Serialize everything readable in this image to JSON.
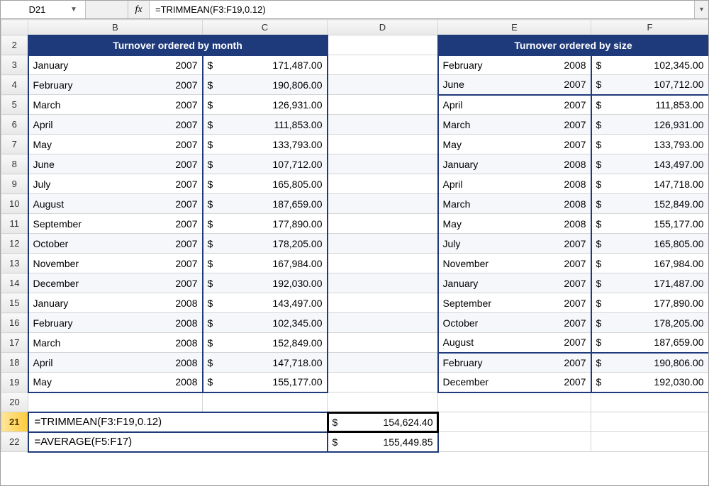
{
  "colors": {
    "header_bg": "#1e3a7b",
    "header_fg": "#ffffff",
    "alt_row_bg": "#f5f7fb",
    "grid_border": "#d4d4d4",
    "box_border": "#1e3a7b",
    "col_active_bg": "#ffcb3d",
    "row_header_bg": "#e6e6e6"
  },
  "nameBox": "D21",
  "formula": "=TRIMMEAN(F3:F19,0.12)",
  "fxLabel": "fx",
  "columns": [
    "B",
    "C",
    "D",
    "E",
    "F"
  ],
  "activeColumn": "D",
  "activeRow": 21,
  "rowStart": 2,
  "rowEnd": 22,
  "headers": {
    "left": "Turnover ordered by month",
    "right": "Turnover ordered by size"
  },
  "currency": "$",
  "leftTable": [
    {
      "month": "January",
      "year": "2007",
      "amount": "171,487.00"
    },
    {
      "month": "February",
      "year": "2007",
      "amount": "190,806.00"
    },
    {
      "month": "March",
      "year": "2007",
      "amount": "126,931.00"
    },
    {
      "month": "April",
      "year": "2007",
      "amount": "111,853.00"
    },
    {
      "month": "May",
      "year": "2007",
      "amount": "133,793.00"
    },
    {
      "month": "June",
      "year": "2007",
      "amount": "107,712.00"
    },
    {
      "month": "July",
      "year": "2007",
      "amount": "165,805.00"
    },
    {
      "month": "August",
      "year": "2007",
      "amount": "187,659.00"
    },
    {
      "month": "September",
      "year": "2007",
      "amount": "177,890.00"
    },
    {
      "month": "October",
      "year": "2007",
      "amount": "178,205.00"
    },
    {
      "month": "November",
      "year": "2007",
      "amount": "167,984.00"
    },
    {
      "month": "December",
      "year": "2007",
      "amount": "192,030.00"
    },
    {
      "month": "January",
      "year": "2008",
      "amount": "143,497.00"
    },
    {
      "month": "February",
      "year": "2008",
      "amount": "102,345.00"
    },
    {
      "month": "March",
      "year": "2008",
      "amount": "152,849.00"
    },
    {
      "month": "April",
      "year": "2008",
      "amount": "147,718.00"
    },
    {
      "month": "May",
      "year": "2008",
      "amount": "155,177.00"
    }
  ],
  "rightTable": [
    {
      "month": "February",
      "year": "2008",
      "amount": "102,345.00"
    },
    {
      "month": "June",
      "year": "2007",
      "amount": "107,712.00"
    },
    {
      "month": "April",
      "year": "2007",
      "amount": "111,853.00"
    },
    {
      "month": "March",
      "year": "2007",
      "amount": "126,931.00"
    },
    {
      "month": "May",
      "year": "2007",
      "amount": "133,793.00"
    },
    {
      "month": "January",
      "year": "2008",
      "amount": "143,497.00"
    },
    {
      "month": "April",
      "year": "2008",
      "amount": "147,718.00"
    },
    {
      "month": "March",
      "year": "2008",
      "amount": "152,849.00"
    },
    {
      "month": "May",
      "year": "2008",
      "amount": "155,177.00"
    },
    {
      "month": "July",
      "year": "2007",
      "amount": "165,805.00"
    },
    {
      "month": "November",
      "year": "2007",
      "amount": "167,984.00"
    },
    {
      "month": "January",
      "year": "2007",
      "amount": "171,487.00"
    },
    {
      "month": "September",
      "year": "2007",
      "amount": "177,890.00"
    },
    {
      "month": "October",
      "year": "2007",
      "amount": "178,205.00"
    },
    {
      "month": "August",
      "year": "2007",
      "amount": "187,659.00"
    },
    {
      "month": "February",
      "year": "2007",
      "amount": "190,806.00"
    },
    {
      "month": "December",
      "year": "2007",
      "amount": "192,030.00"
    }
  ],
  "rightBoxSplits": [
    2,
    15
  ],
  "results": [
    {
      "formula": "=TRIMMEAN(F3:F19,0.12)",
      "value": "154,624.40",
      "row": 21
    },
    {
      "formula": "=AVERAGE(F5:F17)",
      "value": "155,449.85",
      "row": 22
    }
  ]
}
